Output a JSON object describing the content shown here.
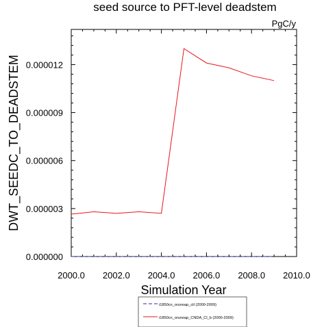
{
  "chart_data": {
    "type": "line",
    "title": "seed source to PFT-level deadstem",
    "units": "PgC/y",
    "xlabel": "Simulation Year",
    "ylabel": "DWT_SEEDC_TO_DEADSTEM",
    "xlim": [
      2000,
      2010
    ],
    "ylim": [
      0,
      1.42e-05
    ],
    "x_ticks": [
      2000,
      2002,
      2004,
      2006,
      2008,
      2010
    ],
    "x_tick_labels": [
      "2000.0",
      "2002.0",
      "2004.0",
      "2006.0",
      "2008.0",
      "2010.0"
    ],
    "y_ticks": [
      0,
      3e-06,
      6e-06,
      9e-06,
      1.2e-05
    ],
    "y_tick_labels": [
      "0.000000",
      "0.000003",
      "0.000006",
      "0.000009",
      "0.000012"
    ],
    "grid": false,
    "legend_position": "bottom",
    "series": [
      {
        "name": "i1850cn_orunoap_ctl (2000-2009)",
        "color": "#2a2aa8",
        "dash": true,
        "x": [
          2000,
          2001,
          2002,
          2003,
          2004,
          2005,
          2006,
          2007,
          2008,
          2009
        ],
        "values": [
          0,
          0,
          0,
          0,
          0,
          0,
          0,
          0,
          0,
          0
        ]
      },
      {
        "name": "i1850cn_orunoap_CNDA_Cl_b (2000-2009)",
        "color": "#e8141c",
        "dash": false,
        "x": [
          2000,
          2001,
          2002,
          2003,
          2004,
          2005,
          2006,
          2007,
          2008,
          2009
        ],
        "values": [
          2.65e-06,
          2.8e-06,
          2.7e-06,
          2.8e-06,
          2.7e-06,
          1.3e-05,
          1.21e-05,
          1.18e-05,
          1.13e-05,
          1.1e-05
        ]
      }
    ]
  }
}
